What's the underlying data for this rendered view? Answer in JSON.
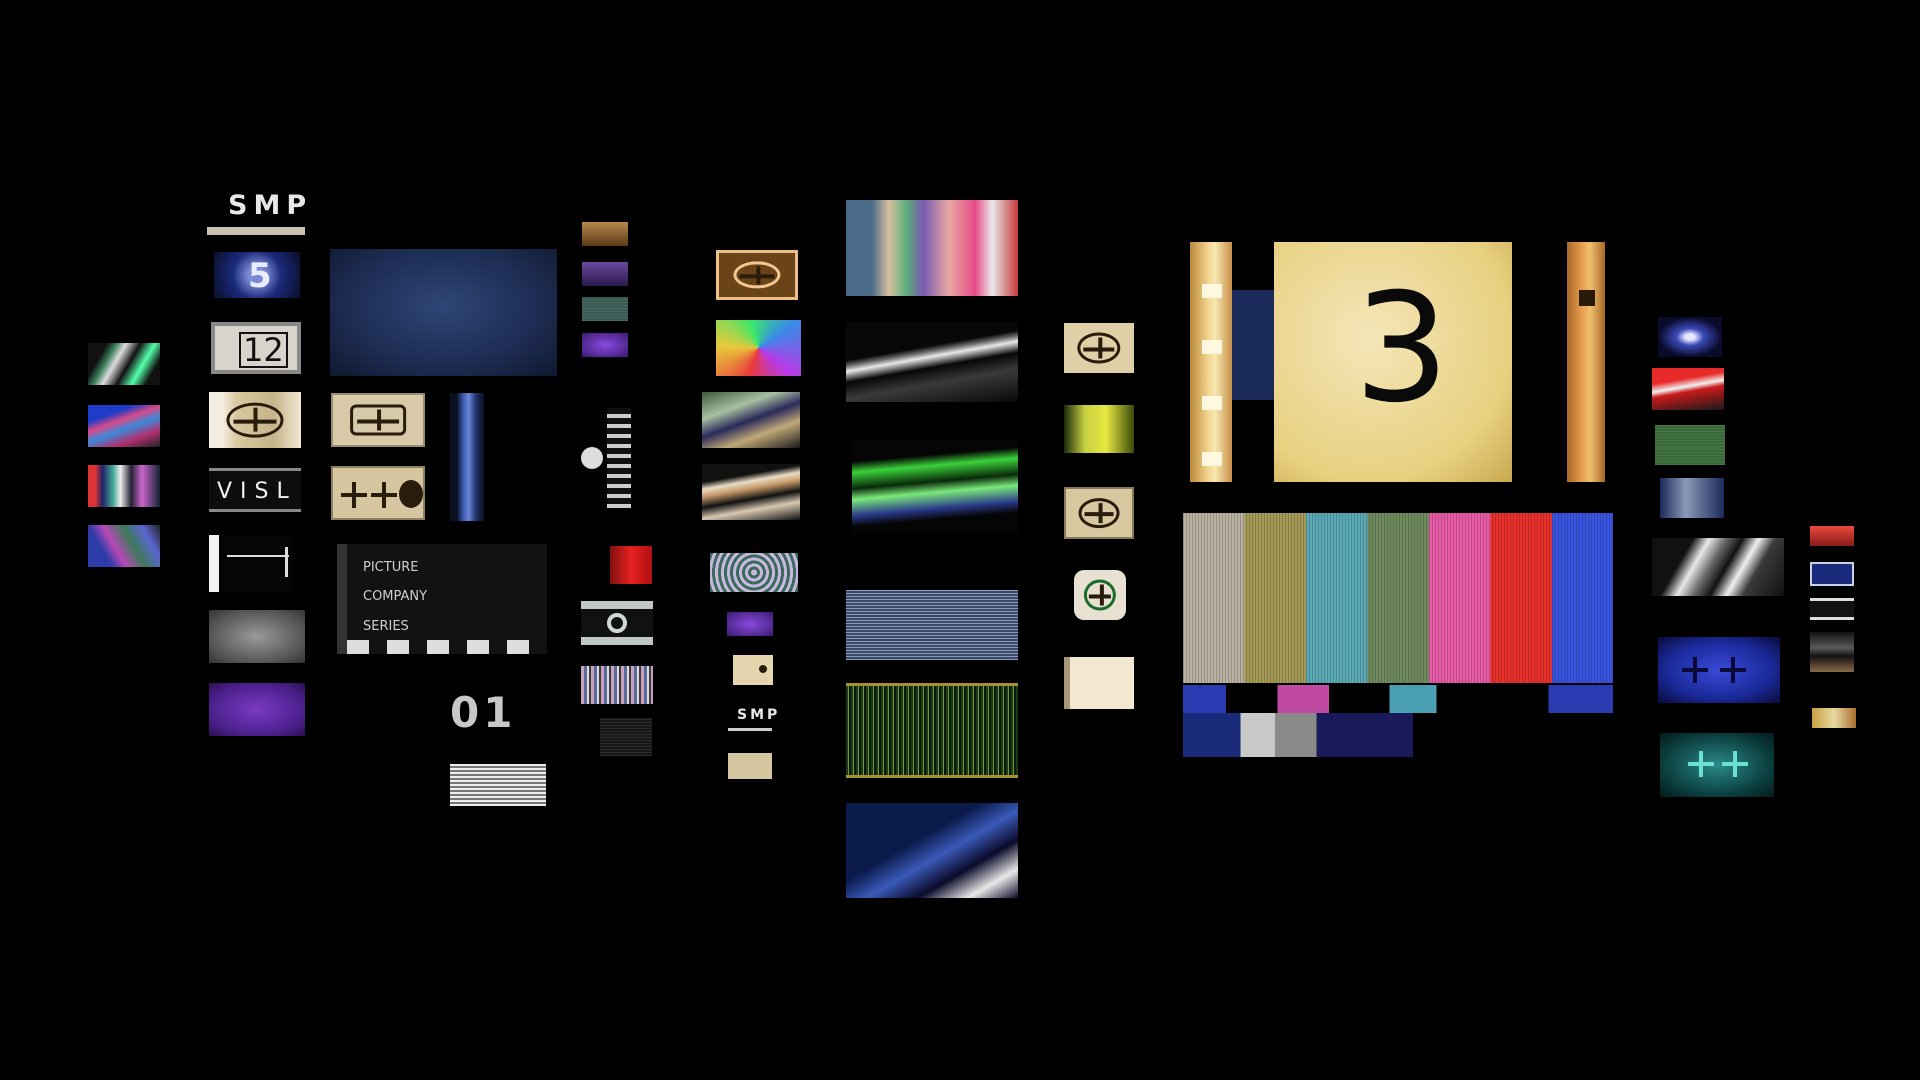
{
  "leaders": {
    "smp_top": "SMP",
    "num_5": "5",
    "num_12": "12",
    "visl": "VISL",
    "picture": "PICTURE",
    "company": "COMPANY",
    "series": "SERIES",
    "num_01": "01",
    "smp_small": "SMP",
    "num_3": "3"
  },
  "colors": {
    "background": "#000000",
    "leader_cream": "#e7d9b4",
    "leader_yellow": "#efd77c",
    "bar_gray": "#b8b0a0",
    "bar_yellow": "#a59a55",
    "bar_cyan": "#5aa9b5",
    "bar_green": "#6f8a5c",
    "bar_magenta": "#e85aa8",
    "bar_red": "#e8302a",
    "bar_blue": "#3a56e0"
  }
}
